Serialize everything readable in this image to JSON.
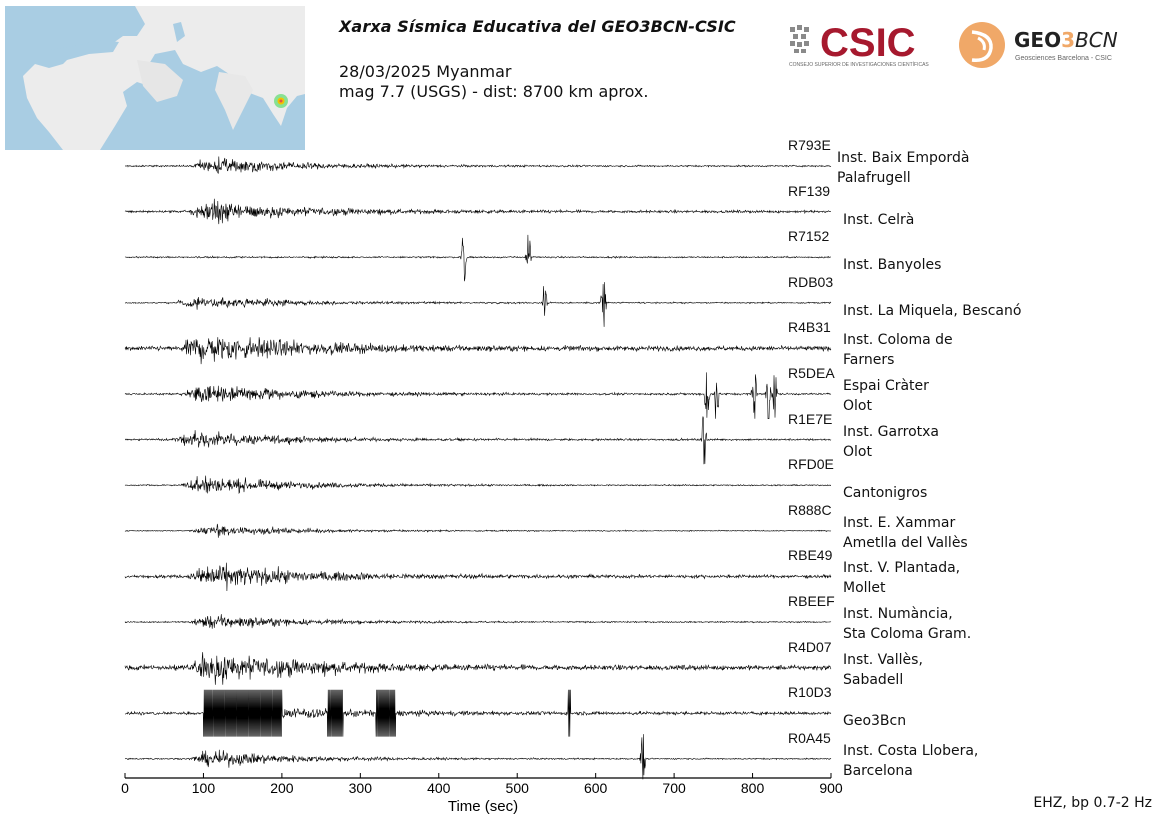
{
  "header": {
    "title": "Xarxa Sísmica Educativa del GEO3BCN-CSIC",
    "date_region": "28/03/2025 Myanmar",
    "magnitude_distance": "mag 7.7 (USGS) - dist: 8700 km aprox."
  },
  "logos": {
    "csic_wordmark": "CSIC",
    "csic_subtitle": "CONSEJO SUPERIOR DE INVESTIGACIONES CIENTÍFICAS",
    "geo3bcn_wordmark_a": "GEO",
    "geo3bcn_wordmark_b": "3",
    "geo3bcn_wordmark_c": "BCN",
    "geo3bcn_subtitle": "Geosciences Barcelona - CSIC",
    "csic_color": "#a6192e",
    "geo_accent_color": "#f0a868"
  },
  "footer": {
    "filter_note": "EHZ, bp 0.7-2 Hz"
  },
  "colors": {
    "trace": "#000000",
    "map_water": "#a9cde3",
    "map_land": "#ececec",
    "epicenter": "#f2c200"
  },
  "chart_data": {
    "type": "line",
    "xlabel": "Time (sec)",
    "xlim": [
      0,
      900
    ],
    "xticks": [
      0,
      100,
      200,
      300,
      400,
      500,
      600,
      700,
      800,
      900
    ],
    "stations": [
      {
        "code": "R793E",
        "site": [
          "Inst. Baix Empordà",
          "Palafrugell"
        ],
        "onset": 80,
        "amp": 0.45,
        "noise": 0.05,
        "spikes": []
      },
      {
        "code": "RF139",
        "site": [
          "Inst. Celrà"
        ],
        "onset": 80,
        "amp": 0.6,
        "noise": 0.08,
        "spikes": []
      },
      {
        "code": "R7152",
        "site": [
          "Inst. Banyoles"
        ],
        "onset": 0,
        "amp": 0.0,
        "noise": 0.05,
        "spikes": [
          432,
          514
        ]
      },
      {
        "code": "RDB03",
        "site": [
          "Inst. La Miquela, Bescanó"
        ],
        "onset": 60,
        "amp": 0.35,
        "noise": 0.04,
        "spikes": [
          535,
          610
        ]
      },
      {
        "code": "R4B31",
        "site": [
          "Inst. Coloma de",
          "Farners"
        ],
        "onset": 70,
        "amp": 0.85,
        "noise": 0.15,
        "spikes": []
      },
      {
        "code": "R5DEA",
        "site": [
          "Espai Cràter",
          "Olot"
        ],
        "onset": 70,
        "amp": 0.55,
        "noise": 0.06,
        "spikes": [
          742,
          754,
          802,
          820,
          828
        ]
      },
      {
        "code": "R1E7E",
        "site": [
          "Inst. Garrotxa",
          "Olot"
        ],
        "onset": 60,
        "amp": 0.45,
        "noise": 0.06,
        "spikes": [
          738
        ]
      },
      {
        "code": "RFD0E",
        "site": [
          "Cantonigros"
        ],
        "onset": 70,
        "amp": 0.5,
        "noise": 0.04,
        "spikes": []
      },
      {
        "code": "R888C",
        "site": [
          "Inst. E. Xammar",
          "Ametlla del Vallès"
        ],
        "onset": 80,
        "amp": 0.3,
        "noise": 0.03,
        "spikes": []
      },
      {
        "code": "RBE49",
        "site": [
          "Inst. V. Plantada,",
          "Mollet"
        ],
        "onset": 80,
        "amp": 0.7,
        "noise": 0.1,
        "spikes": []
      },
      {
        "code": "RBEEF",
        "site": [
          "Inst. Numància,",
          "Sta Coloma Gram."
        ],
        "onset": 80,
        "amp": 0.4,
        "noise": 0.04,
        "spikes": []
      },
      {
        "code": "R4D07",
        "site": [
          "Inst. Vallès,",
          "Sabadell"
        ],
        "onset": 80,
        "amp": 0.9,
        "noise": 0.15,
        "spikes": []
      },
      {
        "code": "R10D3",
        "site": [
          "Geo3Bcn"
        ],
        "onset": 100,
        "amp": 0.6,
        "noise": 0.1,
        "spikes": [],
        "clipped_ranges": [
          [
            100,
            200
          ],
          [
            258,
            278
          ],
          [
            320,
            345
          ],
          [
            565,
            568
          ]
        ]
      },
      {
        "code": "R0A45",
        "site": [
          "Inst. Costa Llobera,",
          "Barcelona"
        ],
        "onset": 80,
        "amp": 0.45,
        "noise": 0.04,
        "spikes": [
          660
        ]
      }
    ]
  }
}
